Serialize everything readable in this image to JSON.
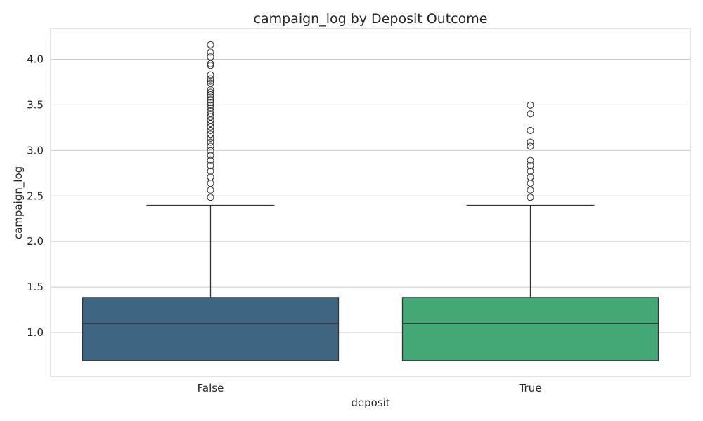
{
  "chart_data": {
    "type": "box",
    "title": "campaign_log by Deposit Outcome",
    "xlabel": "deposit",
    "ylabel": "campaign_log",
    "ylim": [
      0.515,
      4.335
    ],
    "yticks": [
      1.0,
      1.5,
      2.0,
      2.5,
      3.0,
      3.5,
      4.0
    ],
    "ytick_labels": [
      "1.0",
      "1.5",
      "2.0",
      "2.5",
      "3.0",
      "3.5",
      "4.0"
    ],
    "grid": true,
    "legend": "none",
    "categories": [
      "False",
      "True"
    ],
    "boxes": [
      {
        "category": "False",
        "color": "#3e6683",
        "whisker_low": 0.693,
        "q1": 0.693,
        "median": 1.099,
        "q3": 1.386,
        "whisker_high": 2.398,
        "outliers": [
          2.485,
          2.565,
          2.639,
          2.708,
          2.773,
          2.833,
          2.89,
          2.944,
          2.996,
          3.045,
          3.091,
          3.135,
          3.178,
          3.219,
          3.258,
          3.296,
          3.332,
          3.367,
          3.401,
          3.434,
          3.466,
          3.497,
          3.526,
          3.555,
          3.584,
          3.611,
          3.638,
          3.664,
          3.738,
          3.761,
          3.784,
          3.829,
          3.932,
          3.951,
          4.025,
          4.078,
          4.159
        ]
      },
      {
        "category": "True",
        "color": "#44a876",
        "whisker_low": 0.693,
        "q1": 0.693,
        "median": 1.099,
        "q3": 1.386,
        "whisker_high": 2.398,
        "outliers": [
          2.485,
          2.565,
          2.639,
          2.708,
          2.773,
          2.833,
          2.89,
          3.045,
          3.091,
          3.219,
          3.401,
          3.497
        ]
      }
    ]
  }
}
